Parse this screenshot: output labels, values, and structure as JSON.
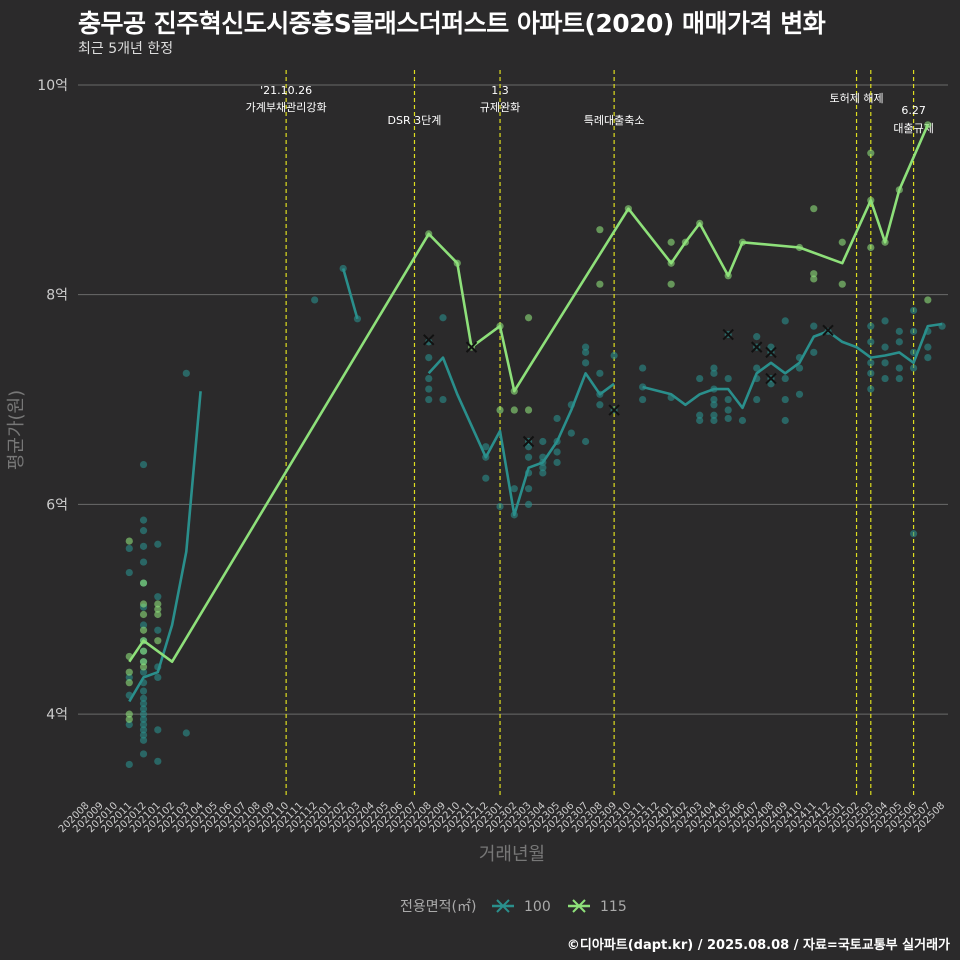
{
  "title": "충무공 진주혁신도시중흥S클래스더퍼스트 아파트(2020) 매매가격 변화",
  "subtitle": "최근 5개년 한정",
  "caption": "©디아파트(dapt.kr) / 2025.08.08 / 자료=국토교통부 실거래가",
  "chart_data": {
    "type": "scatter",
    "xlabel": "거래년월",
    "ylabel": "평균가(원)",
    "x_categories": [
      "202008",
      "202009",
      "202010",
      "202011",
      "202012",
      "202101",
      "202102",
      "202103",
      "202104",
      "202105",
      "202106",
      "202107",
      "202108",
      "202109",
      "202110",
      "202111",
      "202112",
      "202201",
      "202202",
      "202203",
      "202204",
      "202205",
      "202206",
      "202207",
      "202208",
      "202209",
      "202210",
      "202211",
      "202212",
      "202301",
      "202302",
      "202303",
      "202304",
      "202305",
      "202306",
      "202307",
      "202308",
      "202309",
      "202310",
      "202311",
      "202312",
      "202401",
      "202402",
      "202403",
      "202404",
      "202405",
      "202406",
      "202407",
      "202408",
      "202409",
      "202410",
      "202411",
      "202412",
      "202501",
      "202502",
      "202503",
      "202504",
      "202505",
      "202506",
      "202507",
      "202508"
    ],
    "ylim": [
      3.2,
      10.2
    ],
    "y_ticks": [
      {
        "value": 4,
        "label": "4억"
      },
      {
        "value": 6,
        "label": "6억"
      },
      {
        "value": 8,
        "label": "8억"
      },
      {
        "value": 10,
        "label": "10억"
      }
    ],
    "grid": "horizontal",
    "legend": {
      "title": "전용면적(㎡)",
      "position": "bottom",
      "items": [
        {
          "label": "100",
          "color": "#2a8f8c"
        },
        {
          "label": "115",
          "color": "#8ee07a"
        }
      ]
    },
    "annotations": [
      {
        "x": "202110",
        "line1": "'21.10.26",
        "line2": "가계부채관리강화",
        "level": 1
      },
      {
        "x": "202207",
        "line1": "",
        "line2": "DSR 3단계",
        "level": 2
      },
      {
        "x": "202301",
        "line1": "1.3",
        "line2": "규제완화",
        "level": 1
      },
      {
        "x": "202309",
        "line1": "",
        "line2": "특례대출축소",
        "level": 2
      },
      {
        "x": "202502",
        "line1": "",
        "line2": "토허제 해제",
        "level": 0
      },
      {
        "x": "202503",
        "line1": "",
        "line2": "",
        "level": 0
      },
      {
        "x": "202506",
        "line1": "6.27",
        "line2": "대출규제",
        "level": 2
      }
    ],
    "series": [
      {
        "name": "100",
        "color": "#2a8f8c",
        "line": [
          [
            "202011",
            4.12
          ],
          [
            "202012",
            4.35
          ],
          [
            "202101",
            4.4
          ],
          [
            "202102",
            4.85
          ],
          [
            "202103",
            5.55
          ],
          [
            "202104",
            7.08
          ],
          null,
          [
            "202202",
            8.25
          ],
          [
            "202203",
            7.77
          ],
          null,
          [
            "202208",
            7.25
          ],
          [
            "202209",
            7.4
          ],
          [
            "202210",
            7.05
          ],
          [
            "202212",
            6.45
          ],
          [
            "202301",
            6.7
          ],
          [
            "202302",
            5.9
          ],
          [
            "202303",
            6.35
          ],
          [
            "202304",
            6.4
          ],
          [
            "202305",
            6.6
          ],
          [
            "202306",
            6.9
          ],
          [
            "202307",
            7.25
          ],
          [
            "202308",
            7.05
          ],
          [
            "202309",
            7.15
          ],
          null,
          [
            "202311",
            7.12
          ],
          [
            "202401",
            7.05
          ],
          [
            "202402",
            6.95
          ],
          [
            "202403",
            7.05
          ],
          [
            "202404",
            7.1
          ],
          [
            "202405",
            7.1
          ],
          [
            "202406",
            6.92
          ],
          [
            "202407",
            7.25
          ],
          [
            "202408",
            7.35
          ],
          [
            "202409",
            7.25
          ],
          [
            "202410",
            7.35
          ],
          [
            "202411",
            7.6
          ],
          [
            "202412",
            7.65
          ],
          [
            "202501",
            7.55
          ],
          [
            "202502",
            7.5
          ],
          [
            "202503",
            7.4
          ],
          [
            "202504",
            7.42
          ],
          [
            "202505",
            7.45
          ],
          [
            "202506",
            7.35
          ],
          [
            "202507",
            7.7
          ],
          [
            "202508",
            7.72
          ]
        ],
        "points": [
          [
            "202011",
            5.35
          ],
          [
            "202011",
            5.58
          ],
          [
            "202011",
            4.35
          ],
          [
            "202011",
            4.18
          ],
          [
            "202011",
            3.9
          ],
          [
            "202011",
            3.52
          ],
          [
            "202012",
            6.38
          ],
          [
            "202012",
            5.85
          ],
          [
            "202012",
            5.75
          ],
          [
            "202012",
            5.6
          ],
          [
            "202012",
            5.45
          ],
          [
            "202012",
            5.25
          ],
          [
            "202012",
            5.02
          ],
          [
            "202012",
            4.85
          ],
          [
            "202012",
            4.7
          ],
          [
            "202012",
            4.6
          ],
          [
            "202012",
            4.5
          ],
          [
            "202012",
            4.4
          ],
          [
            "202012",
            4.3
          ],
          [
            "202012",
            4.22
          ],
          [
            "202012",
            4.15
          ],
          [
            "202012",
            4.1
          ],
          [
            "202012",
            4.05
          ],
          [
            "202012",
            4.0
          ],
          [
            "202012",
            3.95
          ],
          [
            "202012",
            3.9
          ],
          [
            "202012",
            3.85
          ],
          [
            "202012",
            3.8
          ],
          [
            "202012",
            3.75
          ],
          [
            "202012",
            3.62
          ],
          [
            "202101",
            5.62
          ],
          [
            "202101",
            5.12
          ],
          [
            "202101",
            4.8
          ],
          [
            "202101",
            4.45
          ],
          [
            "202101",
            4.35
          ],
          [
            "202101",
            3.85
          ],
          [
            "202101",
            3.55
          ],
          [
            "202103",
            7.25
          ],
          [
            "202103",
            3.82
          ],
          [
            "202112",
            7.95
          ],
          [
            "202202",
            8.25
          ],
          [
            "202203",
            7.77
          ],
          [
            "202208",
            7.55
          ],
          [
            "202208",
            7.4
          ],
          [
            "202208",
            7.2
          ],
          [
            "202208",
            7.1
          ],
          [
            "202208",
            7.0
          ],
          [
            "202209",
            7.78
          ],
          [
            "202209",
            7.0
          ],
          [
            "202212",
            6.55
          ],
          [
            "202212",
            6.45
          ],
          [
            "202212",
            6.25
          ],
          [
            "202301",
            5.98
          ],
          [
            "202302",
            5.9
          ],
          [
            "202302",
            6.15
          ],
          [
            "202303",
            6.6
          ],
          [
            "202303",
            6.55
          ],
          [
            "202303",
            6.45
          ],
          [
            "202303",
            6.3
          ],
          [
            "202303",
            6.15
          ],
          [
            "202303",
            6.0
          ],
          [
            "202304",
            6.6
          ],
          [
            "202304",
            6.45
          ],
          [
            "202304",
            6.4
          ],
          [
            "202304",
            6.35
          ],
          [
            "202304",
            6.3
          ],
          [
            "202305",
            6.82
          ],
          [
            "202305",
            6.6
          ],
          [
            "202305",
            6.5
          ],
          [
            "202305",
            6.4
          ],
          [
            "202306",
            6.95
          ],
          [
            "202306",
            6.68
          ],
          [
            "202307",
            7.5
          ],
          [
            "202307",
            7.45
          ],
          [
            "202307",
            7.35
          ],
          [
            "202307",
            6.6
          ],
          [
            "202308",
            7.25
          ],
          [
            "202308",
            7.05
          ],
          [
            "202308",
            6.95
          ],
          [
            "202309",
            7.42
          ],
          [
            "202309",
            6.9
          ],
          [
            "202311",
            7.3
          ],
          [
            "202311",
            7.0
          ],
          [
            "202311",
            7.12
          ],
          [
            "202401",
            7.02
          ],
          [
            "202403",
            7.2
          ],
          [
            "202403",
            6.85
          ],
          [
            "202403",
            6.8
          ],
          [
            "202404",
            7.3
          ],
          [
            "202404",
            7.25
          ],
          [
            "202404",
            7.1
          ],
          [
            "202404",
            7.0
          ],
          [
            "202404",
            6.95
          ],
          [
            "202404",
            6.85
          ],
          [
            "202404",
            6.8
          ],
          [
            "202405",
            7.62
          ],
          [
            "202405",
            7.2
          ],
          [
            "202405",
            7.0
          ],
          [
            "202405",
            6.9
          ],
          [
            "202405",
            6.82
          ],
          [
            "202406",
            6.8
          ],
          [
            "202407",
            7.6
          ],
          [
            "202407",
            7.5
          ],
          [
            "202407",
            7.3
          ],
          [
            "202407",
            7.2
          ],
          [
            "202407",
            7.0
          ],
          [
            "202408",
            7.5
          ],
          [
            "202408",
            7.45
          ],
          [
            "202408",
            7.2
          ],
          [
            "202408",
            7.15
          ],
          [
            "202409",
            7.75
          ],
          [
            "202409",
            7.2
          ],
          [
            "202409",
            7.0
          ],
          [
            "202409",
            6.8
          ],
          [
            "202410",
            7.4
          ],
          [
            "202410",
            7.3
          ],
          [
            "202410",
            7.05
          ],
          [
            "202411",
            7.7
          ],
          [
            "202411",
            7.45
          ],
          [
            "202412",
            7.65
          ],
          [
            "202503",
            7.7
          ],
          [
            "202503",
            7.55
          ],
          [
            "202503",
            7.35
          ],
          [
            "202503",
            7.25
          ],
          [
            "202503",
            7.1
          ],
          [
            "202504",
            7.75
          ],
          [
            "202504",
            7.5
          ],
          [
            "202504",
            7.35
          ],
          [
            "202504",
            7.2
          ],
          [
            "202505",
            7.65
          ],
          [
            "202505",
            7.55
          ],
          [
            "202505",
            7.3
          ],
          [
            "202505",
            7.2
          ],
          [
            "202506",
            7.85
          ],
          [
            "202506",
            7.65
          ],
          [
            "202506",
            7.45
          ],
          [
            "202506",
            7.3
          ],
          [
            "202506",
            5.72
          ],
          [
            "202507",
            7.65
          ],
          [
            "202507",
            7.5
          ],
          [
            "202507",
            7.4
          ],
          [
            "202508",
            7.7
          ]
        ],
        "crosses": [
          [
            "202208",
            7.57
          ],
          [
            "202303",
            6.6
          ],
          [
            "202309",
            6.9
          ],
          [
            "202405",
            7.62
          ],
          [
            "202407",
            7.5
          ],
          [
            "202408",
            7.45
          ],
          [
            "202408",
            7.2
          ],
          [
            "202412",
            7.66
          ]
        ]
      },
      {
        "name": "115",
        "color": "#8ee07a",
        "line": [
          [
            "202011",
            4.5
          ],
          [
            "202012",
            4.7
          ],
          [
            "202101",
            4.6
          ],
          [
            "202102",
            4.5
          ],
          [
            "202208",
            8.58
          ],
          [
            "202210",
            8.3
          ],
          [
            "202211",
            7.5
          ],
          [
            "202301",
            7.7
          ],
          [
            "202302",
            7.08
          ],
          [
            "202303",
            7.3
          ],
          [
            "202310",
            8.82
          ],
          [
            "202401",
            8.3
          ],
          [
            "202402",
            8.5
          ],
          [
            "202403",
            8.68
          ],
          [
            "202405",
            8.18
          ],
          [
            "202406",
            8.5
          ],
          [
            "202410",
            8.45
          ],
          [
            "202501",
            8.3
          ],
          [
            "202503",
            8.9
          ],
          [
            "202504",
            8.5
          ],
          [
            "202505",
            9.0
          ],
          [
            "202507",
            9.62
          ]
        ],
        "points": [
          [
            "202011",
            5.65
          ],
          [
            "202011",
            4.55
          ],
          [
            "202011",
            4.4
          ],
          [
            "202011",
            4.3
          ],
          [
            "202011",
            4.0
          ],
          [
            "202011",
            3.95
          ],
          [
            "202012",
            5.25
          ],
          [
            "202012",
            5.05
          ],
          [
            "202012",
            4.95
          ],
          [
            "202012",
            4.8
          ],
          [
            "202012",
            4.7
          ],
          [
            "202012",
            4.6
          ],
          [
            "202012",
            4.5
          ],
          [
            "202012",
            4.45
          ],
          [
            "202101",
            5.05
          ],
          [
            "202101",
            5.0
          ],
          [
            "202101",
            4.95
          ],
          [
            "202101",
            4.7
          ],
          [
            "202208",
            8.58
          ],
          [
            "202210",
            8.3
          ],
          [
            "202211",
            7.5
          ],
          [
            "202301",
            7.7
          ],
          [
            "202301",
            6.9
          ],
          [
            "202302",
            6.9
          ],
          [
            "202302",
            7.08
          ],
          [
            "202303",
            7.78
          ],
          [
            "202303",
            6.9
          ],
          [
            "202308",
            8.62
          ],
          [
            "202308",
            8.1
          ],
          [
            "202310",
            8.82
          ],
          [
            "202401",
            8.5
          ],
          [
            "202401",
            8.3
          ],
          [
            "202401",
            8.1
          ],
          [
            "202402",
            8.5
          ],
          [
            "202403",
            8.68
          ],
          [
            "202405",
            8.18
          ],
          [
            "202406",
            8.5
          ],
          [
            "202410",
            8.45
          ],
          [
            "202411",
            8.82
          ],
          [
            "202411",
            8.2
          ],
          [
            "202411",
            8.15
          ],
          [
            "202501",
            8.5
          ],
          [
            "202501",
            8.1
          ],
          [
            "202503",
            9.35
          ],
          [
            "202503",
            8.9
          ],
          [
            "202503",
            8.45
          ],
          [
            "202504",
            8.5
          ],
          [
            "202505",
            9.0
          ],
          [
            "202507",
            9.62
          ],
          [
            "202507",
            7.95
          ]
        ],
        "crosses": [
          [
            "202211",
            7.5
          ]
        ]
      }
    ]
  }
}
